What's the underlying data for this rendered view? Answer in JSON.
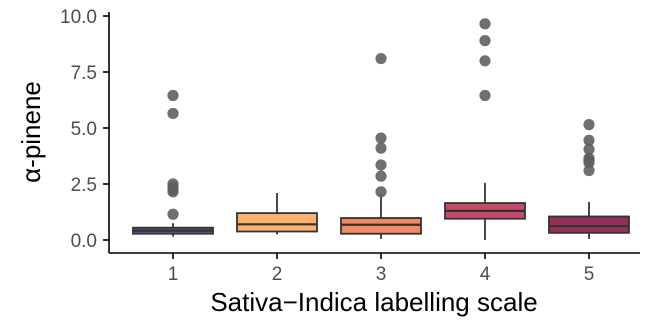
{
  "chart_data": {
    "type": "box",
    "xlabel": "Sativa−Indica labelling scale",
    "ylabel": "α-pinene",
    "ylim": [
      -0.25,
      10.1
    ],
    "yticks": [
      0.0,
      2.5,
      5.0,
      7.5,
      10.0
    ],
    "ytick_labels": [
      "0.0",
      "2.5",
      "5.0",
      "7.5",
      "10.0"
    ],
    "categories": [
      "1",
      "2",
      "3",
      "4",
      "5"
    ],
    "grid": false,
    "legend": "none",
    "boxes": [
      {
        "category": "1",
        "whisker_low": 0.15,
        "q1": 0.28,
        "median": 0.42,
        "q3": 0.55,
        "whisker_high": 0.75,
        "color": "#585b8c",
        "outliers": [
          6.45,
          5.65,
          2.5,
          2.35,
          2.25,
          2.15,
          1.15
        ]
      },
      {
        "category": "2",
        "whisker_low": 0.25,
        "q1": 0.38,
        "median": 0.7,
        "q3": 1.2,
        "whisker_high": 2.1,
        "color": "#fcb16f",
        "outliers": []
      },
      {
        "category": "3",
        "whisker_low": 0.05,
        "q1": 0.28,
        "median": 0.68,
        "q3": 0.98,
        "whisker_high": 2.05,
        "color": "#f28b63",
        "outliers": [
          8.1,
          4.55,
          4.1,
          3.35,
          2.85,
          2.15
        ]
      },
      {
        "category": "4",
        "whisker_low": 0.0,
        "q1": 0.95,
        "median": 1.3,
        "q3": 1.65,
        "whisker_high": 2.55,
        "color": "#c84a6a",
        "outliers": [
          9.65,
          8.9,
          8.0,
          6.45
        ]
      },
      {
        "category": "5",
        "whisker_low": 0.05,
        "q1": 0.32,
        "median": 0.62,
        "q3": 1.05,
        "whisker_high": 1.7,
        "color": "#96305a",
        "outliers": [
          5.15,
          4.45,
          4.05,
          3.65,
          3.55,
          3.45,
          3.1
        ]
      }
    ]
  }
}
